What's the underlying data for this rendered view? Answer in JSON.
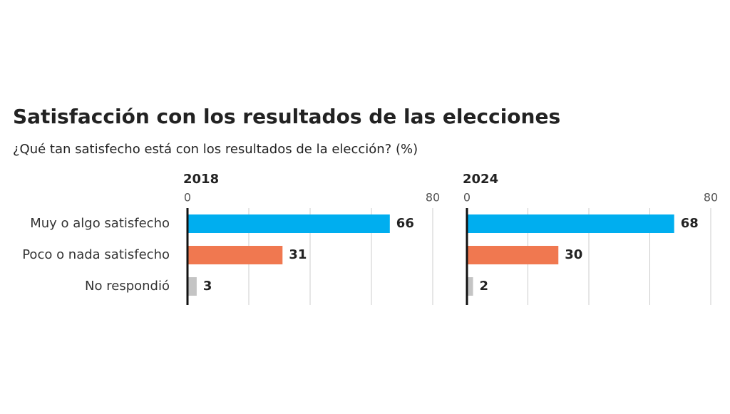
{
  "title": "Satisfacción con los resultados de las elecciones",
  "subtitle": "¿Qué tan satisfecho está con los resultados de la elección? (%)",
  "chart_data": [
    {
      "type": "bar",
      "orientation": "horizontal",
      "title": "2018",
      "categories": [
        "Muy o algo satisfecho",
        "Poco o nada satisfecho",
        "No respondió"
      ],
      "values": [
        66,
        31,
        3
      ],
      "colors": [
        "#00aeef",
        "#f07850",
        "#c4c4c4"
      ],
      "xlim": [
        0,
        80
      ],
      "xticks": [
        0,
        80
      ],
      "grid": [
        20,
        40,
        60,
        80
      ]
    },
    {
      "type": "bar",
      "orientation": "horizontal",
      "title": "2024",
      "values": [
        68,
        30,
        2
      ],
      "colors": [
        "#00aeef",
        "#f07850",
        "#c4c4c4"
      ],
      "xlim": [
        0,
        80
      ],
      "xticks": [
        0,
        80
      ],
      "grid": [
        20,
        40,
        60,
        80
      ]
    }
  ]
}
